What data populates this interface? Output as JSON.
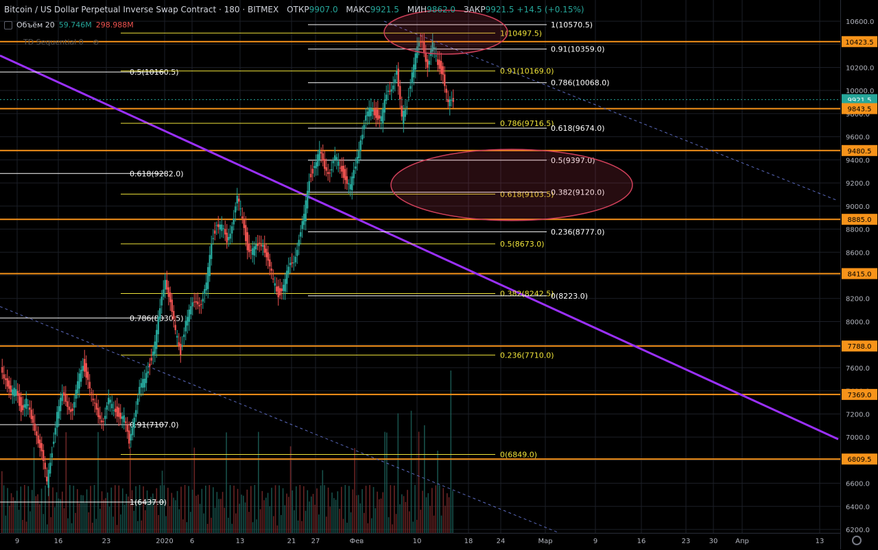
{
  "header": {
    "symbol": "Bitcoin / US Dollar Perpetual Inverse Swap Contract · 180 · BITMEX",
    "open_label": "ОТКР",
    "open_value": "9907.0",
    "high_label": "МАКС",
    "high_value": "9921.5",
    "low_label": "МИН",
    "low_value": "9862.0",
    "close_label": "ЗАКР",
    "close_value": "9921.5",
    "change": "+14.5 (+0.15%)"
  },
  "volume_indicator": {
    "label": "Объём 20",
    "value1": "59.746M",
    "value2": "298.988M"
  },
  "td_indicator": {
    "label": "TD Sequential 0"
  },
  "colors": {
    "background": "#000000",
    "grid": "#1c1f27",
    "up": "#26a69a",
    "down": "#ef5350",
    "orange_level": "#f7931a",
    "trendline": "#9b30ff",
    "fib_yellow": "#f0e43a",
    "fib_white": "#ffffff",
    "ellipse": "#d0405a"
  },
  "chart_data": {
    "type": "candlestick",
    "y_axis": {
      "min": 6200,
      "max": 10700,
      "ticks": [
        "10600.0",
        "10400.0",
        "10200.0",
        "10000.0",
        "9800.0",
        "9600.0",
        "9400.0",
        "9200.0",
        "9000.0",
        "8800.0",
        "8600.0",
        "8400.0",
        "8200.0",
        "8000.0",
        "7800.0",
        "7600.0",
        "7400.0",
        "7200.0",
        "7000.0",
        "6800.0",
        "6600.0",
        "6400.0",
        "6200.0"
      ]
    },
    "x_axis": {
      "ticks": [
        "9",
        "16",
        "23",
        "2020",
        "6",
        "13",
        "21",
        "27",
        "Фев",
        "10",
        "18",
        "24",
        "Мар",
        "9",
        "16",
        "23",
        "30",
        "Апр",
        "13"
      ]
    },
    "price_badges": [
      {
        "label": "10423.5",
        "value": 10423.5,
        "color": "#f7931a"
      },
      {
        "label": "9921.5",
        "value": 9921.5,
        "color": "#26a69a"
      },
      {
        "label": "02:20:51",
        "value": 9860,
        "color": "#26a69a"
      },
      {
        "label": "9843.5",
        "value": 9843.5,
        "color": "#f7931a"
      },
      {
        "label": "9480.5",
        "value": 9480.5,
        "color": "#f7931a"
      },
      {
        "label": "8885.0",
        "value": 8885,
        "color": "#f7931a"
      },
      {
        "label": "8415.0",
        "value": 8415,
        "color": "#f7931a"
      },
      {
        "label": "7788.0",
        "value": 7788,
        "color": "#f7931a"
      },
      {
        "label": "7369.0",
        "value": 7369,
        "color": "#f7931a"
      },
      {
        "label": "6809.5",
        "value": 6809.5,
        "color": "#f7931a"
      }
    ],
    "horizontal_levels": [
      10423.5,
      9843.5,
      9480.5,
      8885,
      8415,
      7788,
      7369,
      6809.5
    ],
    "fib_white_left": [
      {
        "label": "0.5(10160.5)",
        "value": 10160.5
      },
      {
        "label": "0.618(9282.0)",
        "value": 9282.0
      },
      {
        "label": "0.786(8030.5)",
        "value": 8030.5
      },
      {
        "label": "0.91(7107.0)",
        "value": 7107.0
      },
      {
        "label": "1(6437.0)",
        "value": 6437.0
      }
    ],
    "fib_yellow": [
      {
        "label": "1(10497.5)",
        "value": 10497.5
      },
      {
        "label": "0.91(10169.0)",
        "value": 10169.0
      },
      {
        "label": "0.786(9716.5)",
        "value": 9716.5
      },
      {
        "label": "0.618(9103.5)",
        "value": 9103.5
      },
      {
        "label": "0.5(8673.0)",
        "value": 8673.0
      },
      {
        "label": "0.382(8242.5)",
        "value": 8242.5
      },
      {
        "label": "0.236(7710.0)",
        "value": 7710.0
      },
      {
        "label": "0(6849.0)",
        "value": 6849.0
      }
    ],
    "fib_white_right": [
      {
        "label": "1(10570.5)",
        "value": 10570.5
      },
      {
        "label": "0.91(10359.0)",
        "value": 10359.0
      },
      {
        "label": "0.786(10068.0)",
        "value": 10068.0
      },
      {
        "label": "0.618(9674.0)",
        "value": 9674.0
      },
      {
        "label": "0.5(9397.0)",
        "value": 9397.0
      },
      {
        "label": "0.382(9120.0)",
        "value": 9120.0
      },
      {
        "label": "0.236(8777.0)",
        "value": 8777.0
      },
      {
        "label": "0(8223.0)",
        "value": 8223.0
      }
    ],
    "trendline": {
      "from": 10700,
      "to": 7100
    },
    "price_path": [
      7600,
      7520,
      7350,
      7420,
      7250,
      7300,
      7150,
      7050,
      6850,
      6600,
      6900,
      7200,
      7350,
      7300,
      7220,
      7450,
      7650,
      7500,
      7280,
      7200,
      7150,
      7300,
      7250,
      7200,
      7150,
      6950,
      7200,
      7400,
      7500,
      7650,
      7800,
      8100,
      8400,
      8150,
      7900,
      7750,
      8000,
      8100,
      8200,
      8150,
      8300,
      8700,
      8850,
      8800,
      8700,
      8850,
      9050,
      8900,
      8650,
      8600,
      8650,
      8700,
      8500,
      8350,
      8250,
      8300,
      8450,
      8550,
      8700,
      8900,
      9250,
      9350,
      9450,
      9350,
      9300,
      9400,
      9350,
      9250,
      9150,
      9350,
      9600,
      9750,
      9850,
      9800,
      9750,
      9950,
      10050,
      10150,
      9750,
      9900,
      10150,
      10350,
      10450,
      10200,
      10380,
      10250,
      10150,
      9860,
      9921
    ],
    "volume_max": 20
  }
}
